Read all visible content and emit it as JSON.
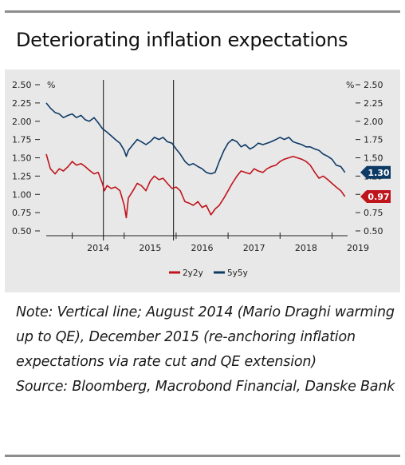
{
  "title": "Deteriorating inflation expectations",
  "note": "Note: Vertical line; August 2014 (Mario Draghi warming up to QE), December 2015 (re-anchoring inflation expectations via rate cut and QE extension)",
  "source": "Source: Bloomberg, Macrobond Financial, Danske Bank",
  "colors": {
    "series_2y2y": "#c0141c",
    "series_5y5y": "#0e3a66",
    "panel": "#e8e8e8"
  },
  "chart_data": {
    "type": "line",
    "left_unit": "%",
    "right_unit": "%",
    "ylim": [
      0.5,
      2.5
    ],
    "y_ticks": [
      "0.50",
      "0.75",
      "1.00",
      "1.25",
      "1.50",
      "1.75",
      "2.00",
      "2.25",
      "2.50"
    ],
    "y_tick_values": [
      0.5,
      0.75,
      1.0,
      1.25,
      1.5,
      1.75,
      2.0,
      2.25,
      2.5
    ],
    "x_range": [
      2013.5,
      2019.3
    ],
    "x_ticks": [
      "2014",
      "2015",
      "2016",
      "2017",
      "2018",
      "2019"
    ],
    "x_tick_values": [
      2014,
      2015,
      2016,
      2017,
      2018,
      2019
    ],
    "vertical_lines": [
      2014.6,
      2015.95
    ],
    "series": [
      {
        "name": "2y2y",
        "key": "series_2y2y",
        "end_label": "0.97",
        "x": [
          2013.5,
          2013.58,
          2013.67,
          2013.75,
          2013.83,
          2013.92,
          2014.0,
          2014.08,
          2014.17,
          2014.25,
          2014.33,
          2014.42,
          2014.5,
          2014.58,
          2014.62,
          2014.67,
          2014.75,
          2014.83,
          2014.92,
          2015.0,
          2015.04,
          2015.08,
          2015.17,
          2015.25,
          2015.33,
          2015.42,
          2015.5,
          2015.58,
          2015.67,
          2015.75,
          2015.83,
          2015.92,
          2016.0,
          2016.08,
          2016.17,
          2016.25,
          2016.33,
          2016.42,
          2016.5,
          2016.58,
          2016.67,
          2016.75,
          2016.83,
          2016.92,
          2017.0,
          2017.08,
          2017.17,
          2017.25,
          2017.33,
          2017.42,
          2017.5,
          2017.58,
          2017.67,
          2017.75,
          2017.83,
          2017.92,
          2018.0,
          2018.08,
          2018.17,
          2018.25,
          2018.33,
          2018.42,
          2018.5,
          2018.58,
          2018.67,
          2018.75,
          2018.83,
          2018.92,
          2019.0,
          2019.08,
          2019.17,
          2019.25
        ],
        "values": [
          1.55,
          1.35,
          1.28,
          1.35,
          1.32,
          1.38,
          1.45,
          1.4,
          1.42,
          1.38,
          1.33,
          1.28,
          1.3,
          1.15,
          1.05,
          1.12,
          1.08,
          1.1,
          1.05,
          0.85,
          0.68,
          0.95,
          1.05,
          1.15,
          1.12,
          1.05,
          1.18,
          1.25,
          1.2,
          1.22,
          1.15,
          1.08,
          1.1,
          1.05,
          0.9,
          0.88,
          0.85,
          0.9,
          0.82,
          0.85,
          0.72,
          0.8,
          0.85,
          0.95,
          1.05,
          1.15,
          1.25,
          1.32,
          1.3,
          1.28,
          1.35,
          1.32,
          1.3,
          1.35,
          1.38,
          1.4,
          1.45,
          1.48,
          1.5,
          1.52,
          1.5,
          1.48,
          1.45,
          1.4,
          1.3,
          1.22,
          1.25,
          1.2,
          1.15,
          1.1,
          1.05,
          0.97
        ]
      },
      {
        "name": "5y5y",
        "key": "series_5y5y",
        "end_label": "1.30",
        "x": [
          2013.5,
          2013.58,
          2013.67,
          2013.75,
          2013.83,
          2013.92,
          2014.0,
          2014.08,
          2014.17,
          2014.25,
          2014.33,
          2014.42,
          2014.5,
          2014.58,
          2014.67,
          2014.75,
          2014.83,
          2014.92,
          2015.0,
          2015.04,
          2015.08,
          2015.17,
          2015.25,
          2015.33,
          2015.42,
          2015.5,
          2015.58,
          2015.67,
          2015.75,
          2015.83,
          2015.92,
          2016.0,
          2016.08,
          2016.17,
          2016.25,
          2016.33,
          2016.42,
          2016.5,
          2016.58,
          2016.67,
          2016.75,
          2016.83,
          2016.92,
          2017.0,
          2017.08,
          2017.17,
          2017.25,
          2017.33,
          2017.42,
          2017.5,
          2017.58,
          2017.67,
          2017.75,
          2017.83,
          2017.92,
          2018.0,
          2018.08,
          2018.17,
          2018.25,
          2018.33,
          2018.42,
          2018.5,
          2018.58,
          2018.67,
          2018.75,
          2018.83,
          2018.92,
          2019.0,
          2019.08,
          2019.17,
          2019.25
        ],
        "values": [
          2.25,
          2.18,
          2.12,
          2.1,
          2.05,
          2.08,
          2.1,
          2.05,
          2.08,
          2.02,
          2.0,
          2.05,
          1.98,
          1.9,
          1.85,
          1.8,
          1.75,
          1.7,
          1.6,
          1.52,
          1.6,
          1.68,
          1.75,
          1.72,
          1.68,
          1.72,
          1.78,
          1.75,
          1.78,
          1.72,
          1.7,
          1.62,
          1.55,
          1.45,
          1.4,
          1.42,
          1.38,
          1.35,
          1.3,
          1.28,
          1.3,
          1.45,
          1.6,
          1.7,
          1.75,
          1.72,
          1.65,
          1.68,
          1.62,
          1.65,
          1.7,
          1.68,
          1.7,
          1.72,
          1.75,
          1.78,
          1.75,
          1.78,
          1.72,
          1.7,
          1.68,
          1.65,
          1.65,
          1.62,
          1.6,
          1.55,
          1.52,
          1.48,
          1.4,
          1.38,
          1.3
        ]
      }
    ]
  }
}
